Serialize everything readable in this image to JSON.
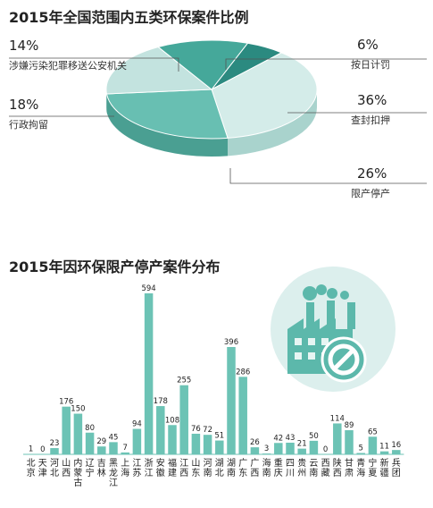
{
  "chart_data": [
    {
      "type": "pie",
      "title": "2015年全国范围内五类环保案件比例",
      "slices": [
        {
          "pct": "6%",
          "label": "按日计罚",
          "value": 6,
          "color": "#2b8a80",
          "side": "#1d6b62"
        },
        {
          "pct": "36%",
          "label": "查封扣押",
          "value": 36,
          "color": "#d4ece9",
          "side": "#a9d3cd"
        },
        {
          "pct": "26%",
          "label": "限产停产",
          "value": 26,
          "color": "#68bfb2",
          "side": "#4a9f92"
        },
        {
          "pct": "18%",
          "label": "行政拘留",
          "value": 18,
          "color": "#c3e3df",
          "side": "#98c9c2"
        },
        {
          "pct": "14%",
          "label": "涉嫌污染犯罪移送公安机关",
          "value": 14,
          "color": "#45a89a",
          "side": "#2f8a7e"
        }
      ]
    },
    {
      "type": "bar",
      "title": "2015年因环保限产停产案件分布",
      "color": "#6cc3b5",
      "categories": [
        "北京",
        "天津",
        "河北",
        "山西",
        "内蒙古",
        "辽宁",
        "吉林",
        "黑龙江",
        "上海",
        "江苏",
        "浙江",
        "安徽",
        "福建",
        "江西",
        "山东",
        "河南",
        "湖北",
        "湖南",
        "广东",
        "广西",
        "海南",
        "重庆",
        "四川",
        "贵州",
        "云南",
        "西藏",
        "陕西",
        "甘肃",
        "青海",
        "宁夏",
        "新疆",
        "兵团"
      ],
      "values": [
        1,
        0,
        23,
        176,
        150,
        80,
        29,
        45,
        7,
        94,
        594,
        178,
        108,
        255,
        76,
        72,
        51,
        396,
        286,
        26,
        3,
        42,
        43,
        21,
        50,
        0,
        114,
        89,
        5,
        65,
        11,
        16
      ],
      "ylim": [
        0,
        600
      ]
    }
  ],
  "icon": {
    "name": "factory-no-icon",
    "bg": "#dcefed",
    "fg": "#5cb8ab"
  }
}
